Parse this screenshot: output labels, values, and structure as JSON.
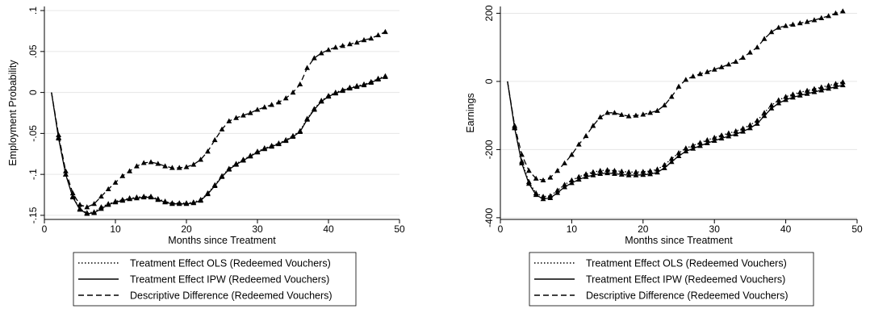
{
  "chart_data": [
    {
      "type": "line",
      "xlabel": "Months since Treatment",
      "ylabel": "Employment Probability",
      "xlim": [
        0,
        50
      ],
      "ylim": [
        -0.155,
        0.105
      ],
      "xticks": [
        0,
        10,
        20,
        30,
        40,
        50
      ],
      "xtick_labels": [
        "0",
        "10",
        "20",
        "30",
        "40",
        "50"
      ],
      "yticks": [
        -0.15,
        -0.1,
        -0.05,
        0,
        0.05,
        0.1
      ],
      "ytick_labels": [
        "-.15",
        "-.1",
        "-.05",
        "0",
        ".05",
        ".1"
      ],
      "grid": "horizontal",
      "legend_position": "bottom",
      "x": [
        1,
        2,
        3,
        4,
        5,
        6,
        7,
        8,
        9,
        10,
        11,
        12,
        13,
        14,
        15,
        16,
        17,
        18,
        19,
        20,
        21,
        22,
        23,
        24,
        25,
        26,
        27,
        28,
        29,
        30,
        31,
        32,
        33,
        34,
        35,
        36,
        37,
        38,
        39,
        40,
        41,
        42,
        43,
        44,
        45,
        46,
        47,
        48
      ],
      "series": [
        {
          "name": "Treatment Effect OLS (Redeemed Vouchers)",
          "style": "dotted",
          "values": [
            0,
            -0.055,
            -0.1,
            -0.127,
            -0.142,
            -0.147,
            -0.146,
            -0.14,
            -0.136,
            -0.133,
            -0.131,
            -0.129,
            -0.128,
            -0.127,
            -0.127,
            -0.13,
            -0.133,
            -0.135,
            -0.135,
            -0.135,
            -0.134,
            -0.131,
            -0.123,
            -0.113,
            -0.102,
            -0.093,
            -0.087,
            -0.082,
            -0.077,
            -0.072,
            -0.068,
            -0.065,
            -0.062,
            -0.058,
            -0.053,
            -0.047,
            -0.032,
            -0.02,
            -0.01,
            -0.004,
            0.0,
            0.003,
            0.006,
            0.008,
            0.01,
            0.013,
            0.017,
            0.02
          ]
        },
        {
          "name": "Treatment Effect IPW (Redeemed Vouchers)",
          "style": "solid",
          "values": [
            0,
            -0.056,
            -0.1,
            -0.128,
            -0.143,
            -0.148,
            -0.147,
            -0.142,
            -0.137,
            -0.134,
            -0.132,
            -0.13,
            -0.129,
            -0.128,
            -0.128,
            -0.131,
            -0.134,
            -0.136,
            -0.136,
            -0.136,
            -0.135,
            -0.132,
            -0.124,
            -0.114,
            -0.103,
            -0.094,
            -0.088,
            -0.083,
            -0.078,
            -0.073,
            -0.069,
            -0.066,
            -0.063,
            -0.059,
            -0.054,
            -0.048,
            -0.033,
            -0.021,
            -0.011,
            -0.005,
            -0.001,
            0.002,
            0.005,
            0.007,
            0.009,
            0.012,
            0.016,
            0.019
          ]
        },
        {
          "name": "Descriptive Difference (Redeemed Vouchers)",
          "style": "dashed",
          "values": [
            0,
            -0.052,
            -0.096,
            -0.123,
            -0.137,
            -0.14,
            -0.136,
            -0.127,
            -0.118,
            -0.11,
            -0.102,
            -0.096,
            -0.09,
            -0.086,
            -0.085,
            -0.087,
            -0.09,
            -0.092,
            -0.092,
            -0.091,
            -0.088,
            -0.082,
            -0.072,
            -0.058,
            -0.045,
            -0.035,
            -0.031,
            -0.028,
            -0.025,
            -0.021,
            -0.018,
            -0.015,
            -0.012,
            -0.007,
            0.0,
            0.01,
            0.03,
            0.042,
            0.048,
            0.052,
            0.055,
            0.057,
            0.059,
            0.061,
            0.064,
            0.066,
            0.07,
            0.074
          ]
        }
      ]
    },
    {
      "type": "line",
      "xlabel": "Months since Treatment",
      "ylabel": "Earnings",
      "xlim": [
        0,
        50
      ],
      "ylim": [
        -405,
        220
      ],
      "xticks": [
        0,
        10,
        20,
        30,
        40,
        50
      ],
      "xtick_labels": [
        "0",
        "10",
        "20",
        "30",
        "40",
        "50"
      ],
      "yticks": [
        -400,
        -200,
        0,
        200
      ],
      "ytick_labels": [
        "-400",
        "-200",
        "0",
        "200"
      ],
      "grid": "horizontal",
      "legend_position": "bottom",
      "x": [
        1,
        2,
        3,
        4,
        5,
        6,
        7,
        8,
        9,
        10,
        11,
        12,
        13,
        14,
        15,
        16,
        17,
        18,
        19,
        20,
        21,
        22,
        23,
        24,
        25,
        26,
        27,
        28,
        29,
        30,
        31,
        32,
        33,
        34,
        35,
        36,
        37,
        38,
        39,
        40,
        41,
        42,
        43,
        44,
        45,
        46,
        47,
        48
      ],
      "series": [
        {
          "name": "Treatment Effect OLS (Redeemed Vouchers)",
          "style": "dotted",
          "values": [
            0,
            -135,
            -235,
            -295,
            -328,
            -338,
            -336,
            -320,
            -303,
            -290,
            -280,
            -272,
            -266,
            -262,
            -260,
            -262,
            -264,
            -266,
            -266,
            -265,
            -263,
            -258,
            -245,
            -227,
            -210,
            -196,
            -188,
            -180,
            -172,
            -165,
            -158,
            -152,
            -146,
            -138,
            -128,
            -115,
            -92,
            -70,
            -55,
            -45,
            -38,
            -32,
            -27,
            -22,
            -17,
            -12,
            -7,
            -2
          ]
        },
        {
          "name": "Treatment Effect IPW (Redeemed Vouchers)",
          "style": "solid",
          "values": [
            0,
            -137,
            -240,
            -300,
            -333,
            -345,
            -342,
            -327,
            -310,
            -298,
            -288,
            -280,
            -275,
            -271,
            -269,
            -271,
            -273,
            -275,
            -275,
            -274,
            -272,
            -267,
            -254,
            -236,
            -219,
            -205,
            -197,
            -189,
            -181,
            -174,
            -167,
            -161,
            -155,
            -147,
            -137,
            -124,
            -101,
            -79,
            -64,
            -54,
            -47,
            -41,
            -36,
            -31,
            -26,
            -21,
            -16,
            -11
          ]
        },
        {
          "name": "Descriptive Difference (Redeemed Vouchers)",
          "style": "dashed",
          "values": [
            0,
            -130,
            -215,
            -262,
            -285,
            -290,
            -282,
            -262,
            -240,
            -215,
            -185,
            -160,
            -130,
            -105,
            -92,
            -92,
            -98,
            -102,
            -100,
            -97,
            -92,
            -86,
            -70,
            -45,
            -15,
            5,
            15,
            22,
            28,
            35,
            42,
            50,
            58,
            70,
            85,
            100,
            125,
            145,
            158,
            163,
            167,
            171,
            175,
            180,
            186,
            192,
            200,
            206
          ]
        }
      ]
    }
  ]
}
